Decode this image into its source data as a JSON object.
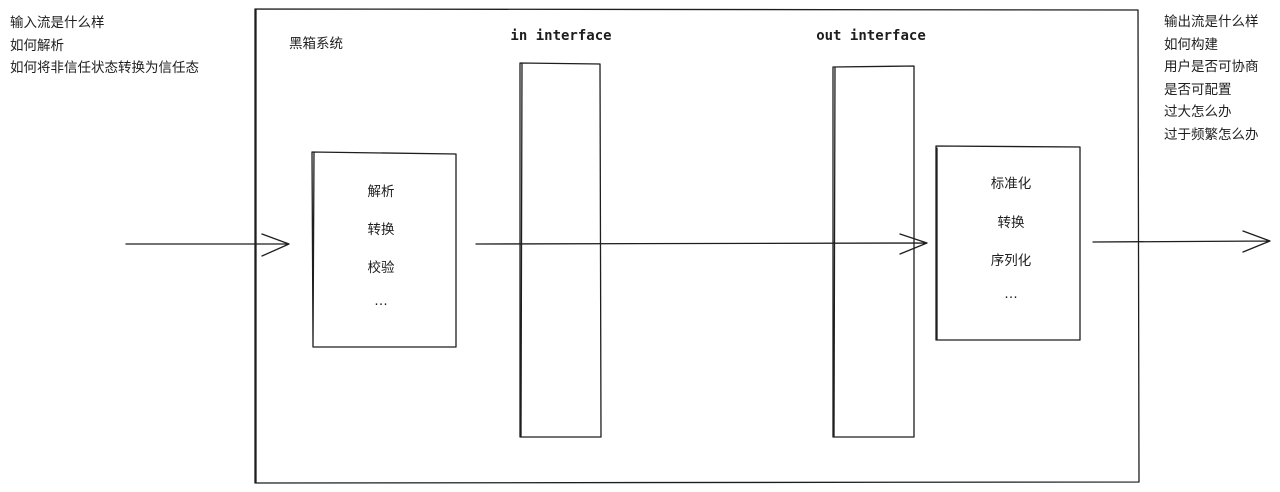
{
  "input_notes": {
    "lines": [
      "输入流是什么样",
      "如何解析",
      "如何将非信任状态转换为信任态"
    ]
  },
  "output_notes": {
    "lines": [
      "输出流是什么样",
      "如何构建",
      "用户是否可协商",
      "是否可配置",
      "过大怎么办",
      "过于频繁怎么办"
    ]
  },
  "black_box": {
    "title": "黑箱系统"
  },
  "in_interface": {
    "label": "in interface"
  },
  "out_interface": {
    "label": "out interface"
  },
  "parse_box": {
    "items": [
      "解析",
      "转换",
      "校验",
      "…"
    ]
  },
  "serialize_box": {
    "items": [
      "标准化",
      "转换",
      "序列化",
      "…"
    ]
  },
  "colors": {
    "stroke": "#1e1e1e",
    "background": "#ffffff"
  }
}
